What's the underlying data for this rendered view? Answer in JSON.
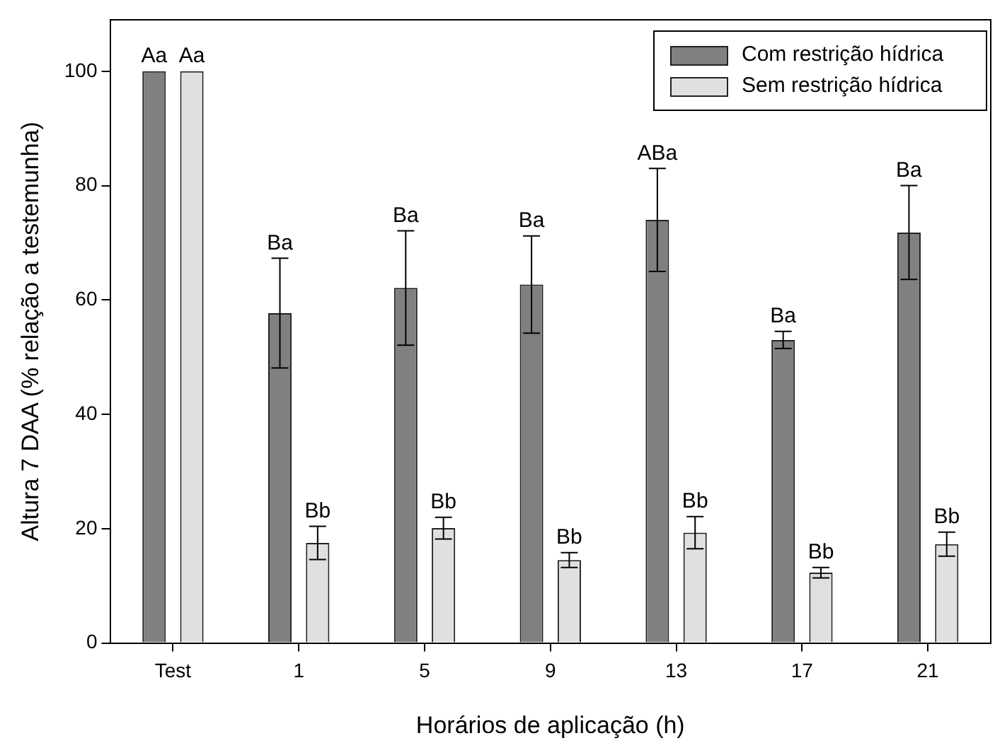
{
  "chart_data": {
    "type": "bar",
    "xlabel": "Horários de aplicação (h)",
    "ylabel": "Altura 7 DAA (% relação a testemunha)",
    "categories": [
      "Test",
      "1",
      "5",
      "9",
      "13",
      "17",
      "21"
    ],
    "series": [
      {
        "name": "Com restrição hídrica",
        "color": "#808080",
        "values": [
          100,
          57.7,
          62.1,
          62.7,
          74,
          53,
          71.8
        ],
        "errors": [
          null,
          9.6,
          10,
          8.5,
          9,
          1.5,
          8.2
        ]
      },
      {
        "name": "Sem restrição hídrica",
        "color": "#e0e0e0",
        "values": [
          100,
          17.5,
          20.1,
          14.5,
          19.3,
          12.3,
          17.3
        ],
        "errors": [
          null,
          2.9,
          1.9,
          1.3,
          2.8,
          0.9,
          2.1
        ]
      }
    ],
    "ylim": [
      0,
      109
    ],
    "yticks": [
      0,
      20,
      40,
      60,
      80,
      100
    ],
    "grid": false,
    "legend": "top right",
    "annotations": [
      "Aa",
      "Aa",
      "Ba",
      "Bb",
      "Ba",
      "Bb",
      "Ba",
      "Bb",
      "ABa",
      "Bb",
      "Ba",
      "Bb",
      "Ba",
      "Bb"
    ]
  }
}
